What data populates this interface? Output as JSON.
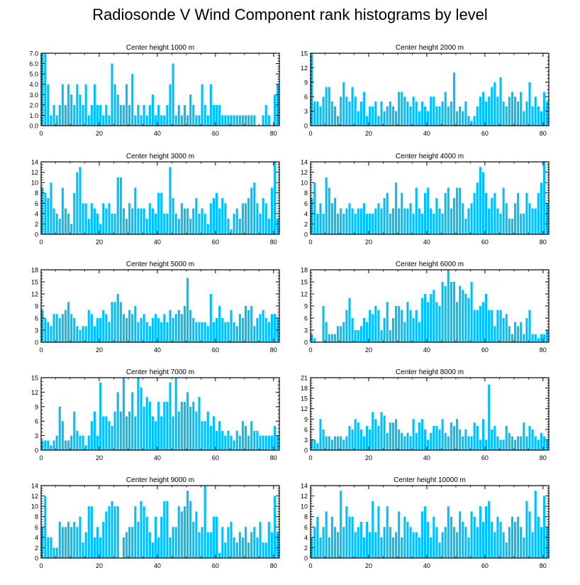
{
  "title": "Radiosonde V Wind Component rank histograms by level",
  "bar_color": "#00bfff",
  "chart_data": [
    {
      "type": "bar",
      "title": "Center height 1000 m",
      "xlim": [
        0,
        82
      ],
      "ylim": [
        0,
        7
      ],
      "xticks": [
        0,
        20,
        40,
        60,
        80
      ],
      "yticks": [
        "0.0",
        "1.0",
        "2.0",
        "3.0",
        "4.0",
        "5.0",
        "6.0",
        "7.0"
      ],
      "values": [
        7,
        7,
        4,
        1,
        2,
        1,
        2,
        4,
        2,
        4,
        3,
        2,
        4,
        3,
        2,
        4,
        1,
        2,
        4,
        2,
        2,
        1,
        2,
        1,
        6,
        4,
        3,
        2,
        2,
        4,
        2,
        5,
        1,
        2,
        1,
        2,
        1,
        2,
        3,
        1,
        2,
        1,
        1,
        2,
        4,
        6,
        1,
        2,
        1,
        2,
        1,
        3,
        2,
        1,
        1,
        4,
        2,
        1,
        4,
        2,
        2,
        2,
        1,
        1,
        1,
        1,
        1,
        1,
        1,
        1,
        1,
        1,
        1,
        1,
        0,
        0,
        1,
        2,
        1,
        0,
        3,
        4
      ]
    },
    {
      "type": "bar",
      "title": "Center height 2000 m",
      "xlim": [
        0,
        82
      ],
      "ylim": [
        0,
        15
      ],
      "xticks": [
        0,
        20,
        40,
        60,
        80
      ],
      "yticks": [
        "0",
        "3",
        "6",
        "9",
        "12",
        "15"
      ],
      "values": [
        15,
        5,
        5,
        4,
        6,
        8,
        8,
        5,
        4,
        2,
        6,
        9,
        6,
        5,
        8,
        6,
        3,
        5,
        7,
        2,
        4,
        4,
        5,
        2,
        5,
        3,
        4,
        5,
        4,
        3,
        7,
        7,
        6,
        5,
        4,
        6,
        5,
        3,
        5,
        4,
        3,
        6,
        6,
        4,
        4,
        5,
        7,
        4,
        5,
        11,
        3,
        4,
        3,
        5,
        2,
        1,
        2,
        4,
        6,
        7,
        5,
        6,
        8,
        9,
        6,
        10,
        5,
        4,
        6,
        7,
        6,
        5,
        7,
        3,
        5,
        9,
        4,
        6,
        4,
        3,
        7,
        5
      ]
    },
    {
      "type": "bar",
      "title": "Center height 3000 m",
      "xlim": [
        0,
        82
      ],
      "ylim": [
        0,
        14
      ],
      "xticks": [
        0,
        20,
        40,
        60,
        80
      ],
      "yticks": [
        "0",
        "2",
        "4",
        "6",
        "8",
        "10",
        "12",
        "14"
      ],
      "values": [
        9,
        8,
        7,
        10,
        5,
        4,
        3,
        9,
        5,
        4,
        2,
        8,
        12,
        13,
        6,
        6,
        3,
        6,
        5,
        4,
        2,
        6,
        5,
        6,
        4,
        4,
        11,
        11,
        5,
        3,
        6,
        5,
        9,
        5,
        5,
        5,
        3,
        6,
        5,
        4,
        8,
        8,
        4,
        4,
        13,
        7,
        4,
        3,
        6,
        5,
        5,
        3,
        5,
        7,
        4,
        5,
        4,
        2,
        6,
        7,
        8,
        5,
        7,
        6,
        3,
        1,
        4,
        5,
        3,
        6,
        6,
        7,
        9,
        10,
        6,
        4,
        7,
        6,
        3,
        9,
        14,
        3
      ]
    },
    {
      "type": "bar",
      "title": "Center height 4000 m",
      "xlim": [
        0,
        82
      ],
      "ylim": [
        0,
        14
      ],
      "xticks": [
        0,
        20,
        40,
        60,
        80
      ],
      "yticks": [
        "0",
        "2",
        "4",
        "6",
        "8",
        "10",
        "12",
        "14"
      ],
      "values": [
        7,
        10,
        4,
        6,
        4,
        11,
        9,
        6,
        7,
        4,
        5,
        4,
        5,
        6,
        5,
        4,
        5,
        5,
        6,
        4,
        4,
        4,
        5,
        6,
        5,
        7,
        8,
        4,
        5,
        10,
        5,
        8,
        5,
        5,
        6,
        4,
        9,
        5,
        4,
        8,
        9,
        5,
        4,
        7,
        5,
        4,
        8,
        9,
        5,
        7,
        9,
        9,
        6,
        3,
        5,
        6,
        8,
        10,
        13,
        12,
        8,
        5,
        7,
        8,
        5,
        4,
        9,
        6,
        3,
        3,
        6,
        8,
        4,
        4,
        8,
        6,
        5,
        5,
        8,
        10,
        14,
        6
      ]
    },
    {
      "type": "bar",
      "title": "Center height 5000 m",
      "xlim": [
        0,
        82
      ],
      "ylim": [
        0,
        18
      ],
      "xticks": [
        0,
        20,
        40,
        60,
        80
      ],
      "yticks": [
        "0",
        "3",
        "6",
        "9",
        "12",
        "15",
        "18"
      ],
      "values": [
        8,
        6,
        5,
        4,
        7,
        7,
        6,
        7,
        8,
        10,
        7,
        6,
        4,
        3,
        4,
        4,
        8,
        7,
        4,
        6,
        6,
        8,
        7,
        5,
        10,
        10,
        12,
        10,
        7,
        6,
        8,
        7,
        9,
        5,
        6,
        7,
        5,
        4,
        6,
        7,
        6,
        5,
        7,
        5,
        8,
        6,
        7,
        8,
        7,
        9,
        16,
        8,
        6,
        5,
        5,
        5,
        5,
        4,
        12,
        5,
        6,
        9,
        6,
        5,
        5,
        8,
        5,
        4,
        7,
        6,
        9,
        8,
        9,
        4,
        6,
        7,
        8,
        6,
        5,
        7,
        7,
        6
      ]
    },
    {
      "type": "bar",
      "title": "Center height 6000 m",
      "xlim": [
        0,
        82
      ],
      "ylim": [
        0,
        18
      ],
      "xticks": [
        0,
        20,
        40,
        60,
        80
      ],
      "yticks": [
        "0",
        "3",
        "6",
        "9",
        "12",
        "15",
        "18"
      ],
      "values": [
        2,
        1,
        0,
        0,
        9,
        5,
        2,
        2,
        2,
        4,
        4,
        5,
        8,
        11,
        6,
        3,
        3,
        4,
        6,
        5,
        8,
        7,
        9,
        8,
        3,
        6,
        10,
        3,
        6,
        9,
        9,
        8,
        5,
        10,
        8,
        6,
        8,
        5,
        11,
        12,
        10,
        12,
        13,
        10,
        9,
        15,
        14,
        18,
        15,
        15,
        10,
        14,
        13,
        12,
        11,
        15,
        8,
        8,
        9,
        10,
        12,
        8,
        8,
        4,
        8,
        8,
        6,
        7,
        4,
        2,
        5,
        4,
        5,
        2,
        6,
        8,
        2,
        2,
        1,
        2,
        2,
        3
      ]
    },
    {
      "type": "bar",
      "title": "Center height 7000 m",
      "xlim": [
        0,
        82
      ],
      "ylim": [
        0,
        15
      ],
      "xticks": [
        0,
        20,
        40,
        60,
        80
      ],
      "yticks": [
        "0",
        "3",
        "6",
        "9",
        "12",
        "15"
      ],
      "values": [
        2,
        2,
        2,
        1,
        2,
        3,
        9,
        6,
        2,
        2,
        3,
        8,
        4,
        3,
        3,
        1,
        3,
        6,
        8,
        3,
        14,
        7,
        7,
        6,
        5,
        8,
        12,
        8,
        15,
        7,
        8,
        12,
        7,
        15,
        13,
        9,
        11,
        10,
        7,
        6,
        10,
        7,
        10,
        10,
        14,
        7,
        15,
        8,
        10,
        10,
        12,
        9,
        10,
        8,
        11,
        6,
        6,
        8,
        5,
        7,
        4,
        6,
        4,
        3,
        4,
        3,
        2,
        4,
        3,
        6,
        5,
        3,
        6,
        4,
        4,
        3,
        3,
        3,
        3,
        3,
        5,
        3
      ]
    },
    {
      "type": "bar",
      "title": "Center height 8000 m",
      "xlim": [
        0,
        82
      ],
      "ylim": [
        0,
        21
      ],
      "xticks": [
        0,
        20,
        40,
        60,
        80
      ],
      "yticks": [
        "0",
        "3",
        "6",
        "9",
        "12",
        "15",
        "18",
        "21"
      ],
      "values": [
        3,
        3,
        2,
        9,
        6,
        4,
        4,
        3,
        4,
        4,
        4,
        3,
        4,
        7,
        6,
        9,
        8,
        6,
        4,
        7,
        6,
        11,
        9,
        7,
        11,
        10,
        5,
        8,
        8,
        9,
        6,
        5,
        4,
        5,
        4,
        9,
        5,
        8,
        9,
        6,
        3,
        5,
        7,
        7,
        6,
        9,
        5,
        4,
        8,
        7,
        9,
        6,
        4,
        6,
        4,
        4,
        8,
        7,
        3,
        9,
        3,
        19,
        6,
        7,
        4,
        3,
        3,
        7,
        5,
        4,
        3,
        4,
        4,
        8,
        4,
        7,
        6,
        4,
        3,
        5,
        4,
        3
      ]
    },
    {
      "type": "bar",
      "title": "Center height 9000 m",
      "xlim": [
        0,
        82
      ],
      "ylim": [
        0,
        14
      ],
      "xticks": [
        0,
        20,
        40,
        60,
        80
      ],
      "yticks": [
        "0",
        "2",
        "4",
        "6",
        "8",
        "10",
        "12",
        "14"
      ],
      "values": [
        6,
        12,
        4,
        4,
        2,
        2,
        7,
        6,
        6,
        7,
        6,
        7,
        6,
        8,
        3,
        5,
        10,
        10,
        4,
        6,
        4,
        7,
        9,
        10,
        11,
        10,
        10,
        0,
        4,
        5,
        6,
        6,
        10,
        7,
        11,
        10,
        8,
        5,
        3,
        8,
        4,
        8,
        11,
        11,
        4,
        6,
        6,
        10,
        9,
        10,
        13,
        11,
        7,
        9,
        5,
        6,
        14,
        5,
        5,
        8,
        8,
        1,
        6,
        3,
        6,
        7,
        4,
        3,
        5,
        4,
        6,
        3,
        5,
        6,
        4,
        7,
        3,
        3,
        7,
        5,
        12,
        5
      ]
    },
    {
      "type": "bar",
      "title": "Center height 10000 m",
      "xlim": [
        0,
        82
      ],
      "ylim": [
        0,
        14
      ],
      "xticks": [
        0,
        20,
        40,
        60,
        80
      ],
      "yticks": [
        "0",
        "2",
        "4",
        "6",
        "8",
        "10",
        "12",
        "14"
      ],
      "values": [
        4,
        6,
        8,
        4,
        6,
        9,
        4,
        8,
        6,
        5,
        13,
        6,
        10,
        8,
        8,
        5,
        6,
        7,
        4,
        7,
        5,
        11,
        5,
        10,
        4,
        6,
        10,
        6,
        4,
        5,
        9,
        4,
        8,
        7,
        6,
        5,
        5,
        4,
        9,
        10,
        7,
        4,
        8,
        6,
        3,
        5,
        6,
        10,
        8,
        6,
        5,
        9,
        7,
        6,
        4,
        9,
        8,
        6,
        10,
        7,
        10,
        11,
        7,
        5,
        8,
        7,
        5,
        3,
        6,
        8,
        7,
        8,
        6,
        4,
        11,
        9,
        5,
        13,
        8,
        6,
        12,
        6
      ]
    }
  ]
}
